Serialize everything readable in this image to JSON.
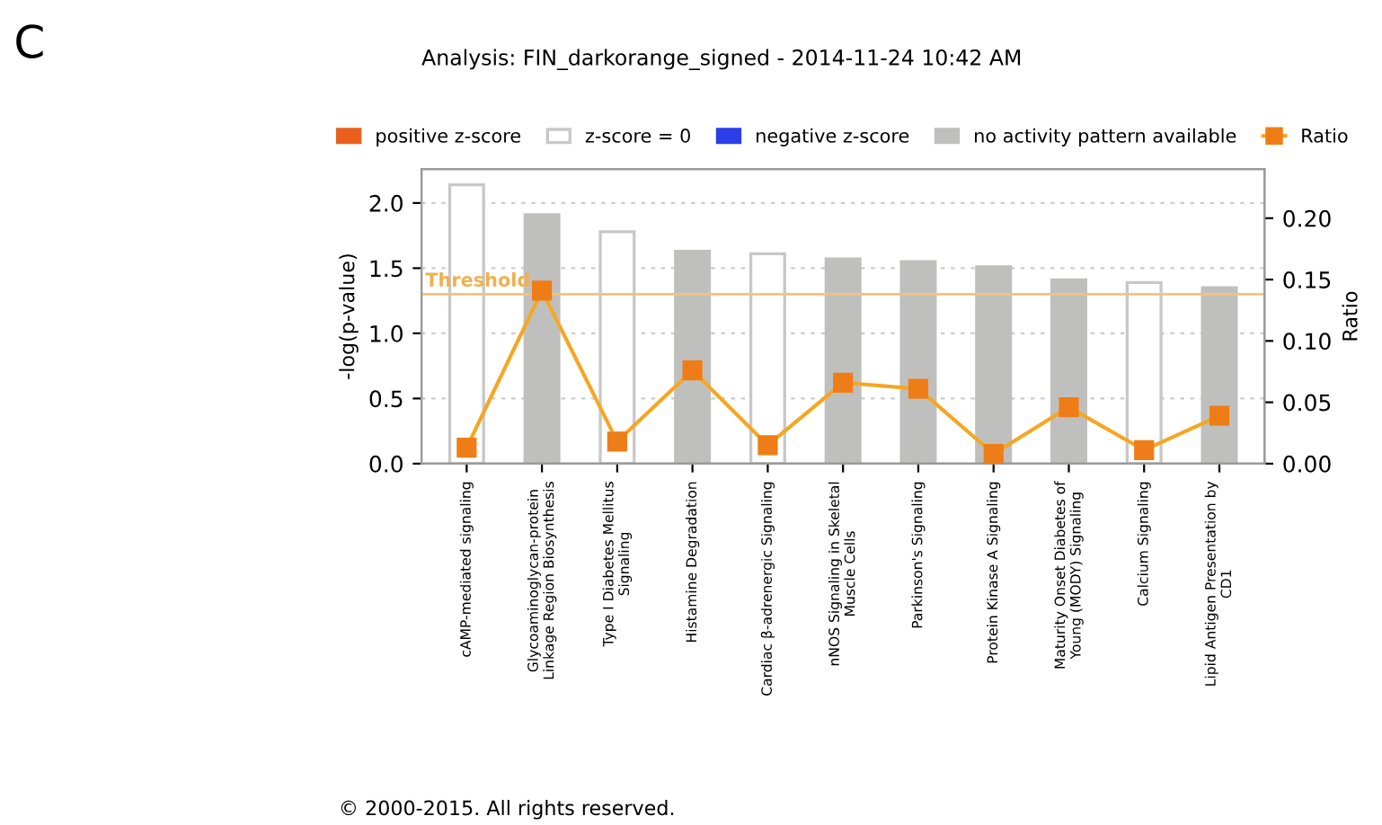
{
  "chart_data": {
    "type": "bar",
    "title": "Analysis: FIN_darkorange_signed - 2014-11-24 10:42 AM",
    "ylabel": "-log(p-value)",
    "y2label": "Ratio",
    "annotations": [
      "C",
      "© 2000-2015. All rights reserved."
    ],
    "categories": [
      "cAMP-mediated signaling",
      "Glycoaminoglycan-protein\nLinkage Region Biosynthesis",
      "Type I Diabetes Mellitus\nSignaling",
      "Histamine Degradation",
      "Cardiac β-adrenergic Signaling",
      "nNOS Signaling in Skeletal\nMuscle Cells",
      "Parkinson's Signaling",
      "Protein Kinase A Signaling",
      "Maturity Onset Diabetes of\nYoung (MODY) Signaling",
      "Calcium Signaling",
      "Lipid Antigen Presentation by\nCD1"
    ],
    "series": [
      {
        "name": "positive z-score",
        "color": "#e8601c",
        "values": [
          null,
          null,
          null,
          null,
          null,
          null,
          null,
          null,
          null,
          null,
          null
        ]
      },
      {
        "name": "z-score = 0",
        "color": "#ffffff",
        "values": [
          2.14,
          null,
          1.78,
          null,
          1.61,
          null,
          null,
          null,
          null,
          1.39,
          null
        ]
      },
      {
        "name": "negative z-score",
        "color": "#2b3ee8",
        "values": [
          null,
          null,
          null,
          null,
          null,
          null,
          null,
          null,
          null,
          null,
          null
        ]
      },
      {
        "name": "no activity pattern available",
        "color": "#bfc0be",
        "values": [
          null,
          1.91,
          null,
          1.63,
          null,
          1.57,
          1.55,
          1.51,
          1.41,
          null,
          1.35
        ]
      },
      {
        "name": "Ratio",
        "type": "line",
        "axis": "y2",
        "color": "#f5a623",
        "marker": "square",
        "values": [
          0.013,
          0.141,
          0.018,
          0.076,
          0.015,
          0.066,
          0.061,
          0.008,
          0.046,
          0.011,
          0.039
        ]
      }
    ],
    "ylim": [
      0,
      2.26
    ],
    "yticks": [
      {
        "value": 0,
        "label": "0.0"
      },
      0.5,
      {
        "value": 1,
        "label": "1.0"
      },
      1.5,
      {
        "value": 2,
        "label": "2.0"
      }
    ],
    "y2lim": [
      0,
      0.24
    ],
    "y2ticks": [
      {
        "value": 0,
        "label": "0.00"
      },
      0.05,
      {
        "value": 0.1,
        "label": "0.10"
      },
      0.15,
      {
        "value": 0.2,
        "label": "0.20"
      }
    ],
    "ref_lines": [
      {
        "axis": "y",
        "value": 1.3,
        "label": "Threshold",
        "color": "#f5c27a"
      }
    ],
    "grid": "y",
    "legend": "top"
  }
}
